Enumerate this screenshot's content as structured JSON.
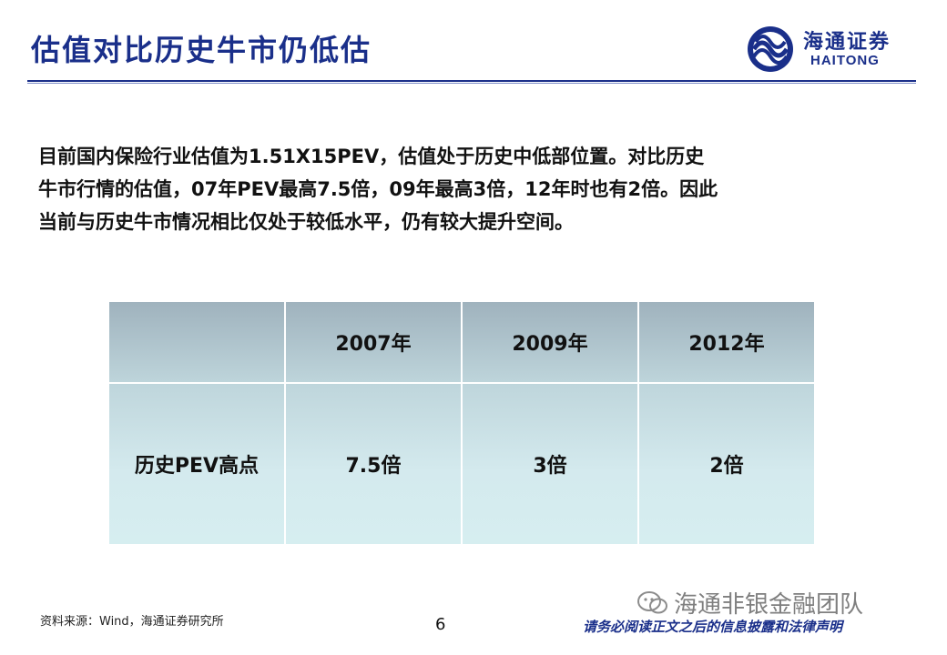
{
  "header": {
    "title": "估值对比历史牛市仍低估",
    "logo_cn": "海通证券",
    "logo_en": "HAITONG",
    "brand_color": "#1a2f8a"
  },
  "body": {
    "lines": [
      "目前国内保险行业估值为1.51X15PEV，估值处于历史中低部位置。对比历史",
      "牛市行情的估值，07年PEV最高7.5倍，09年最高3倍，12年时也有2倍。因此",
      "当前与历史牛市情况相比仅处于较低水平，仍有较大提升空间。"
    ]
  },
  "table": {
    "headers": [
      "",
      "2007年",
      "2009年",
      "2012年"
    ],
    "rows": [
      [
        "历史PEV高点",
        "7.5倍",
        "3倍",
        "2倍"
      ]
    ]
  },
  "footer": {
    "source": "资料来源：Wind，海通证券研究所",
    "page_number": "6",
    "watermark": "海通非银金融团队",
    "disclaimer": "请务必阅读正文之后的信息披露和法律声明"
  }
}
